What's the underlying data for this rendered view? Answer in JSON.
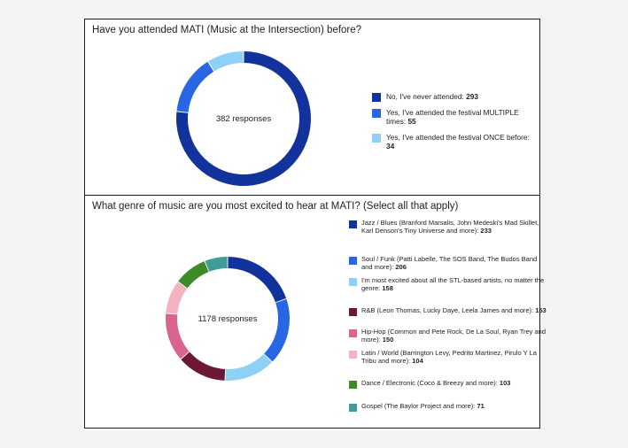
{
  "chart_data": [
    {
      "type": "pie",
      "title": "Have you attended MATI (Music at the Intersection) before?",
      "center_label": "382 responses",
      "legend_position": "right",
      "slices": [
        {
          "label": "No, I've never attended:",
          "value": 293,
          "color": "#13339c"
        },
        {
          "label": "Yes, I've attended the festival MULTIPLE times:",
          "value": 55,
          "color": "#2866e4"
        },
        {
          "label": "Yes, I've attended the festival ONCE before:",
          "value": 34,
          "color": "#8fd0f6"
        }
      ]
    },
    {
      "type": "pie",
      "title": "What genre of music are you most excited to hear at MATI? (Select all that apply)",
      "center_label": "1178 responses",
      "legend_position": "right",
      "slices": [
        {
          "label": "Jazz / Blues (Branford Marsalis, John Medeski's Mad Skillet, Karl Denson's Tiny Universe and more):",
          "value": 233,
          "color": "#13339c"
        },
        {
          "label": "Soul / Funk (Patti Labelle, The SOS Band, The Budos Band and more):",
          "value": 206,
          "color": "#2866e4"
        },
        {
          "label": "I'm most excited about all the STL-based artists, no matter the genre:",
          "value": 158,
          "color": "#8fd0f6"
        },
        {
          "label": "R&B (Leon Thomas, Lucky Daye, Leela James and more):",
          "value": 153,
          "color": "#6b1836"
        },
        {
          "label": "Hip-Hop (Common and Pete Rock, De La Soul, Ryan Trey and more):",
          "value": 150,
          "color": "#d9658f"
        },
        {
          "label": "Latin / World (Barrington Levy, Pedrito Martinez, Pirulo Y La Tribu and more):",
          "value": 104,
          "color": "#f3b3bf"
        },
        {
          "label": "Dance / Electronic (Coco & Breezy and more):",
          "value": 103,
          "color": "#3e8a28"
        },
        {
          "label": "Gospel (The Baylor Project and more):",
          "value": 71,
          "color": "#3f9c96"
        }
      ]
    }
  ]
}
